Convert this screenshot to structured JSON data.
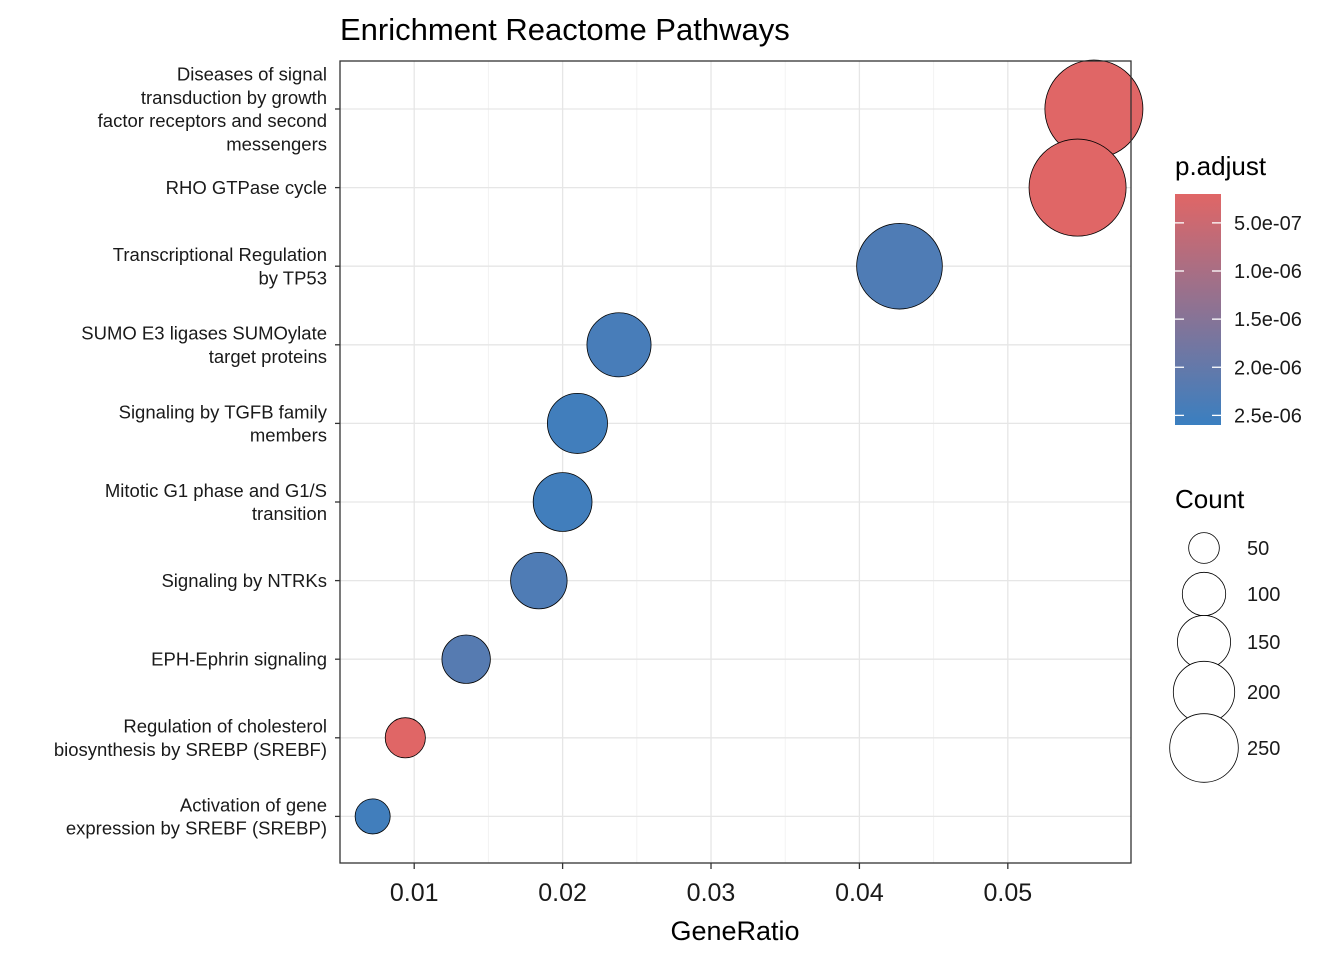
{
  "chart_data": {
    "type": "scatter",
    "title": "Enrichment Reactome Pathways",
    "xlabel": "GeneRatio",
    "ylabel": "",
    "xlim": [
      0.005,
      0.0583
    ],
    "x_ticks": [
      0.01,
      0.02,
      0.03,
      0.04,
      0.05
    ],
    "x_tick_labels": [
      "0.01",
      "0.02",
      "0.03",
      "0.04",
      "0.05"
    ],
    "grid": true,
    "points": [
      {
        "label": [
          "Diseases of signal",
          "transduction by growth",
          "factor receptors and second",
          "messengers"
        ],
        "x": 0.0558,
        "count": 250,
        "p_adjust": 2e-07
      },
      {
        "label": [
          "RHO GTPase cycle"
        ],
        "x": 0.0547,
        "count": 245,
        "p_adjust": 2e-07
      },
      {
        "label": [
          "Transcriptional Regulation",
          "by TP53"
        ],
        "x": 0.0427,
        "count": 191,
        "p_adjust": 2.3e-06
      },
      {
        "label": [
          "SUMO E3 ligases SUMOylate",
          "target proteins"
        ],
        "x": 0.0238,
        "count": 107,
        "p_adjust": 2.4e-06
      },
      {
        "label": [
          "Signaling by TGFB family",
          "members"
        ],
        "x": 0.021,
        "count": 94,
        "p_adjust": 2.5e-06
      },
      {
        "label": [
          "Mitotic G1 phase and G1/S",
          "transition"
        ],
        "x": 0.02,
        "count": 90,
        "p_adjust": 2.5e-06
      },
      {
        "label": [
          "Signaling by NTRKs"
        ],
        "x": 0.0184,
        "count": 83,
        "p_adjust": 2.3e-06
      },
      {
        "label": [
          "EPH-Ephrin signaling"
        ],
        "x": 0.0135,
        "count": 61,
        "p_adjust": 2.2e-06
      },
      {
        "label": [
          "Regulation of cholesterol",
          "biosynthesis by SREBP (SREBF)"
        ],
        "x": 0.0094,
        "count": 42,
        "p_adjust": 2e-07
      },
      {
        "label": [
          "Activation of gene",
          "expression by SREBF (SREBP)"
        ],
        "x": 0.0072,
        "count": 32,
        "p_adjust": 2.5e-06
      }
    ],
    "color_legend": {
      "title": "p.adjust",
      "range": [
        2e-07,
        2.6e-06
      ],
      "low_color": "#e06666",
      "high_color": "#3a7fc0",
      "ticks": [
        5e-07,
        1e-06,
        1.5e-06,
        2e-06,
        2.5e-06
      ],
      "labels": [
        "5.0e-07",
        "1.0e-06",
        "1.5e-06",
        "2.0e-06",
        "2.5e-06"
      ]
    },
    "size_legend": {
      "title": "Count",
      "values": [
        50,
        100,
        150,
        200,
        250
      ],
      "labels": [
        "50",
        "100",
        "150",
        "200",
        "250"
      ]
    },
    "legend_position": "right"
  }
}
